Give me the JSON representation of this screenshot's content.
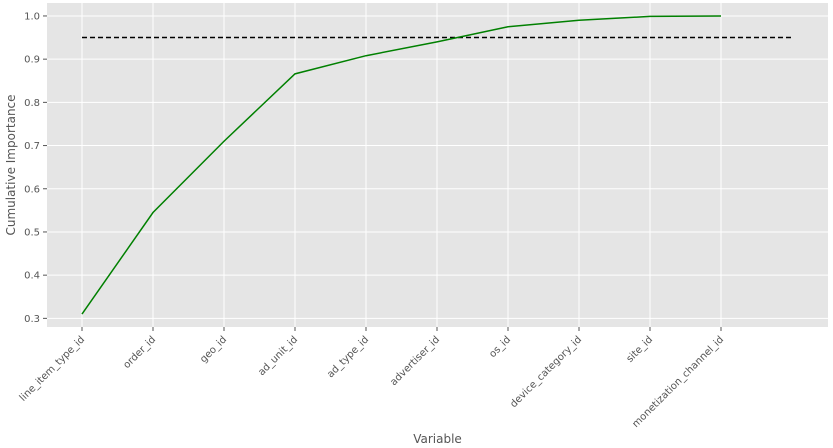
{
  "chart_data": {
    "type": "line",
    "title": "",
    "xlabel": "Variable",
    "ylabel": "Cumulative Importance",
    "categories": [
      "line_item_type_id",
      "order_id",
      "geo_id",
      "ad_unit_id",
      "ad_type_id",
      "advertiser_id",
      "os_id",
      "device_category_id",
      "site_id",
      "monetization_channel_id"
    ],
    "series": [
      {
        "values": [
          0.31,
          0.545,
          0.71,
          0.866,
          0.908,
          0.94,
          0.975,
          0.99,
          0.999,
          1.0
        ],
        "color": "#008000"
      }
    ],
    "threshold": {
      "value": 0.95,
      "style": "dashed",
      "color": "#000000"
    },
    "ylim": [
      0.28,
      1.03
    ],
    "yticks": [
      "0.3",
      "0.4",
      "0.5",
      "0.6",
      "0.7",
      "0.8",
      "0.9",
      "1.0"
    ],
    "grid": true,
    "background": "#e5e5e5",
    "grid_color": "#ffffff"
  }
}
